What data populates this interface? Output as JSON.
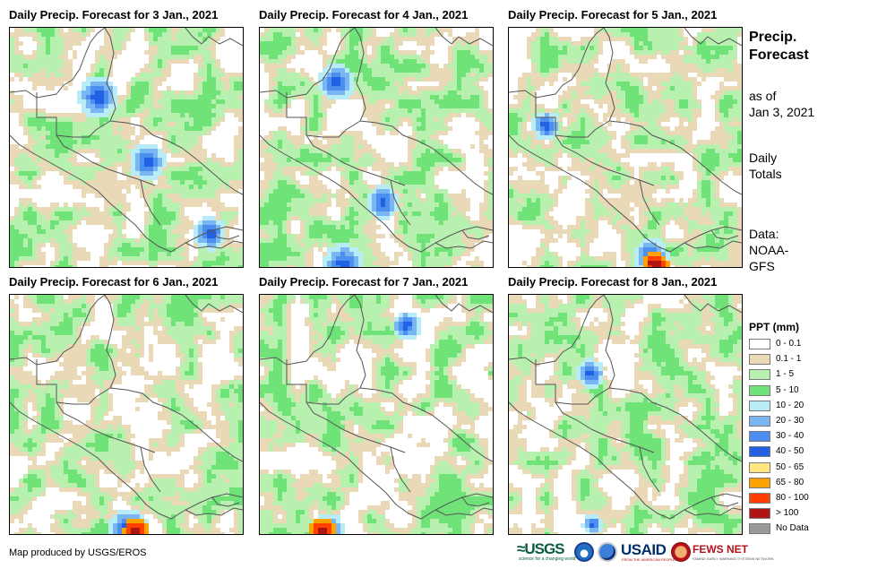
{
  "panels": [
    {
      "title": "Daily Precip. Forecast for 3 Jan., 2021"
    },
    {
      "title": "Daily Precip. Forecast for 4 Jan., 2021"
    },
    {
      "title": "Daily Precip. Forecast for 5 Jan., 2021"
    },
    {
      "title": "Daily Precip. Forecast for 6 Jan., 2021"
    },
    {
      "title": "Daily Precip. Forecast for 7 Jan., 2021"
    },
    {
      "title": "Daily Precip. Forecast for 8 Jan., 2021"
    }
  ],
  "side": {
    "title_line1": "Precip.",
    "title_line2": "Forecast",
    "asof_line1": "as of",
    "asof_line2": "Jan 3, 2021",
    "totals_line1": "Daily",
    "totals_line2": "Totals",
    "data_line1": "Data:",
    "data_line2": "NOAA-",
    "data_line3": "GFS"
  },
  "legend": {
    "title": "PPT (mm)",
    "items": [
      {
        "label": "0 - 0.1",
        "color": "#ffffff"
      },
      {
        "label": "0.1 - 1",
        "color": "#ead9b7"
      },
      {
        "label": "1 - 5",
        "color": "#b8f0b0"
      },
      {
        "label": "5 - 10",
        "color": "#6fe278"
      },
      {
        "label": "10 - 20",
        "color": "#b8ecf6"
      },
      {
        "label": "20 - 30",
        "color": "#7ab7f2"
      },
      {
        "label": "30 - 40",
        "color": "#4d8fee"
      },
      {
        "label": "40 - 50",
        "color": "#2161e3"
      },
      {
        "label": "50 - 65",
        "color": "#ffe680"
      },
      {
        "label": "65 - 80",
        "color": "#ffa200"
      },
      {
        "label": "80 - 100",
        "color": "#ff4000"
      },
      {
        "label": "> 100",
        "color": "#b01515"
      },
      {
        "label": "No Data",
        "color": "#9a9a9a"
      }
    ]
  },
  "footer": {
    "credit": "Map produced by USGS/EROS",
    "logo_usgs": "≈USGS",
    "logo_usgs_tag": "science for a changing world",
    "logo_usaid": "USAID",
    "logo_usaid_tag": "FROM THE AMERICAN PEOPLE",
    "logo_fews": "FEWS NET",
    "logo_fews_tag": "FAMINE EARLY WARNING SYSTEMS NETWORK"
  },
  "colors": {
    "border_outline": "#555555"
  }
}
